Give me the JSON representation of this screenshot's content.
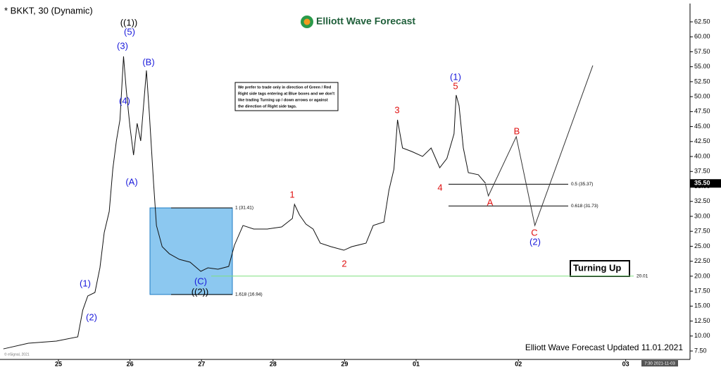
{
  "chart_data": {
    "type": "line",
    "title": "* BKKT, 30 (Dynamic)",
    "brand": "Elliott Wave Forecast",
    "footer": "Elliott Wave Forecast Updated 11.01.2021",
    "copyright": "© eSignal, 2021",
    "timestamp": "7:30 2021-11-03",
    "badge": "Turning Up",
    "note": {
      "lines": [
        "We prefer to trade only in direction of Green / Red",
        "Right side tags entering at Blue boxes and we don't",
        "like trading Turning up / down arrows or against",
        "the direction of Right side tags."
      ]
    },
    "xlim": [
      -0.817,
      8.829
    ],
    "ylim": [
      6.09,
      65.56
    ],
    "xticks": [
      {
        "value": 0,
        "label": "25"
      },
      {
        "value": 1,
        "label": "26"
      },
      {
        "value": 2,
        "label": "27"
      },
      {
        "value": 3,
        "label": "28"
      },
      {
        "value": 4,
        "label": "29"
      },
      {
        "value": 5,
        "label": "01"
      },
      {
        "value": 6.43,
        "label": "02"
      },
      {
        "value": 7.93,
        "label": "03"
      }
    ],
    "yticks": [
      {
        "value": 7.5,
        "label": "7.50"
      },
      {
        "value": 10,
        "label": "10.00"
      },
      {
        "value": 12.5,
        "label": "12.50"
      },
      {
        "value": 15,
        "label": "15.00"
      },
      {
        "value": 17.5,
        "label": "17.50"
      },
      {
        "value": 20,
        "label": "20.00"
      },
      {
        "value": 22.5,
        "label": "22.50"
      },
      {
        "value": 25,
        "label": "25.00"
      },
      {
        "value": 27.5,
        "label": "27.50"
      },
      {
        "value": 30,
        "label": "30.00"
      },
      {
        "value": 32.5,
        "label": "32.50"
      },
      {
        "value": 35,
        "label": "35.00"
      },
      {
        "value": 37.5,
        "label": "37.50"
      },
      {
        "value": 40,
        "label": "40.00"
      },
      {
        "value": 42.5,
        "label": "42.50"
      },
      {
        "value": 45,
        "label": "45.00"
      },
      {
        "value": 47.5,
        "label": "47.50"
      },
      {
        "value": 50,
        "label": "50.00"
      },
      {
        "value": 52.5,
        "label": "52.50"
      },
      {
        "value": 55,
        "label": "55.00"
      },
      {
        "value": 57.5,
        "label": "57.50"
      },
      {
        "value": 60,
        "label": "60.00"
      },
      {
        "value": 62.5,
        "label": "62.50"
      }
    ],
    "series": [
      {
        "color": "#111111",
        "x": [
          -0.77,
          -0.42,
          -0.03,
          0.27,
          0.34,
          0.41,
          0.51,
          0.58,
          0.64,
          0.71,
          0.76,
          0.81,
          0.86,
          0.91,
          0.95,
          1.0,
          1.05,
          1.1,
          1.15,
          1.23,
          1.27,
          1.33,
          1.37,
          1.45,
          1.55,
          1.69,
          1.84,
          1.99,
          2.09,
          2.23,
          2.38,
          2.46,
          2.58,
          2.73,
          2.92,
          3.12,
          3.27,
          3.3,
          3.37,
          3.46,
          3.56,
          3.66,
          3.81,
          3.99,
          4.1,
          4.3,
          4.4,
          4.55,
          4.62,
          4.69,
          4.74,
          4.81,
          4.94,
          5.09,
          5.21,
          5.33,
          5.43,
          5.53,
          5.56,
          5.6,
          5.66,
          5.73,
          5.87,
          5.97
        ],
        "values": [
          7.85,
          8.8,
          9.15,
          9.86,
          14.33,
          16.69,
          17.28,
          21.4,
          27.29,
          30.82,
          37.89,
          42.6,
          46.13,
          56.73,
          50.85,
          44.96,
          40.24,
          45.54,
          42.6,
          54.38,
          47.31,
          35.53,
          28.47,
          24.93,
          23.75,
          22.81,
          22.34,
          20.81,
          21.4,
          21.16,
          21.63,
          25.17,
          28.47,
          27.88,
          27.88,
          28.23,
          29.64,
          32.0,
          30.23,
          28.7,
          27.88,
          25.52,
          24.93,
          24.34,
          24.93,
          25.52,
          28.47,
          29.05,
          34.36,
          37.89,
          46.13,
          41.42,
          40.83,
          40.01,
          41.42,
          38.12,
          39.66,
          43.78,
          50.26,
          48.5,
          41.42,
          37.3,
          36.95,
          35.53
        ]
      },
      {
        "color": "#333333",
        "x": [
          5.97,
          6.01,
          6.4,
          6.66,
          7.47
        ],
        "values": [
          35.3,
          33.41,
          43.31,
          28.47,
          55.2
        ]
      }
    ],
    "levels": [
      {
        "value": 35.37,
        "label": "0.5 (35.37)",
        "color": "#000000"
      },
      {
        "value": 31.73,
        "label": "0.618 (31.73)",
        "color": "#000000"
      },
      {
        "value": 31.41,
        "label": "1 (31.41)",
        "color": "#000000"
      },
      {
        "value": 16.94,
        "label": "1.618 (16.94)",
        "color": "#000000"
      },
      {
        "value": 20.01,
        "label": "20.01",
        "color": "#7fe07f"
      }
    ],
    "current_price": {
      "value": 35.5,
      "label": "35.50"
    },
    "annotations": [
      {
        "text": "((1))",
        "color": "#000000"
      },
      {
        "text": "(5)",
        "color": "#1a1adb"
      },
      {
        "text": "(3)",
        "color": "#1a1adb"
      },
      {
        "text": "(4)",
        "color": "#1a1adb"
      },
      {
        "text": "(B)",
        "color": "#1a1adb"
      },
      {
        "text": "(A)",
        "color": "#1a1adb"
      },
      {
        "text": "(1)",
        "color": "#1a1adb"
      },
      {
        "text": "(2)",
        "color": "#1a1adb"
      },
      {
        "text": "(C)",
        "color": "#1a1adb"
      },
      {
        "text": "((2))",
        "color": "#000000"
      },
      {
        "text": "1",
        "color": "#e01010"
      },
      {
        "text": "2",
        "color": "#e01010"
      },
      {
        "text": "3",
        "color": "#e01010"
      },
      {
        "text": "4",
        "color": "#e01010"
      },
      {
        "text": "5",
        "color": "#e01010"
      },
      {
        "text": "(1)",
        "color": "#1a1adb"
      },
      {
        "text": "B",
        "color": "#e01010"
      },
      {
        "text": "A",
        "color": "#e01010"
      },
      {
        "text": "C",
        "color": "#e01010"
      },
      {
        "text": "(2)",
        "color": "#1a1adb"
      }
    ]
  }
}
